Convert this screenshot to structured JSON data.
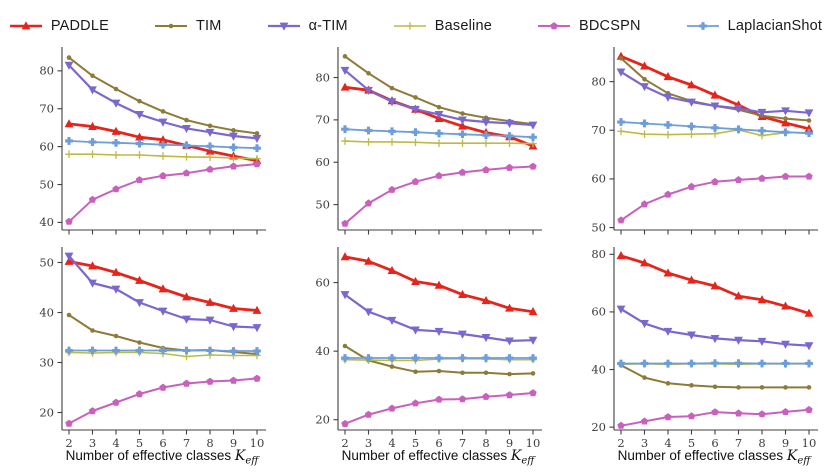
{
  "legend": {
    "items": [
      {
        "label": "PADDLE"
      },
      {
        "label": "TIM"
      },
      {
        "label": "α-TIM"
      },
      {
        "label": "Baseline"
      },
      {
        "label": "BDCSPN"
      },
      {
        "label": "LaplacianShot"
      }
    ]
  },
  "series_styles": {
    "PADDLE": {
      "color": "#e5251c",
      "marker": "triangle-up",
      "line_width": 2.8
    },
    "TIM": {
      "color": "#8d7b39",
      "marker": "dot",
      "line_width": 2.0
    },
    "alpha-TIM": {
      "color": "#7a67cf",
      "marker": "triangle-down",
      "line_width": 2.2
    },
    "Baseline": {
      "color": "#bdba45",
      "marker": "plus-thin",
      "line_width": 1.6
    },
    "BDCSPN": {
      "color": "#c960bd",
      "marker": "pentagon",
      "line_width": 2.0
    },
    "LaplacianShot": {
      "color": "#6e9ed9",
      "marker": "plus-bold",
      "line_width": 1.8
    }
  },
  "xlabel": {
    "text": "Number of effective classes ",
    "math": "K",
    "sub": "eff"
  },
  "x_ticks": [
    2,
    3,
    4,
    5,
    6,
    7,
    8,
    9,
    10
  ],
  "chart_data": [
    {
      "type": "line",
      "position": "top-left",
      "x": [
        2,
        3,
        4,
        5,
        6,
        7,
        8,
        9,
        10
      ],
      "yticks": [
        40,
        50,
        60,
        70,
        80
      ],
      "ylim": [
        38,
        85.5
      ],
      "show_x_tick_labels": false,
      "series": [
        {
          "name": "PADDLE",
          "values": [
            66,
            65.3,
            64,
            62.5,
            61.8,
            60.3,
            58.8,
            57.5,
            56.3
          ]
        },
        {
          "name": "TIM",
          "values": [
            83.5,
            78.7,
            75.2,
            72,
            69.3,
            67,
            65.5,
            64.3,
            63.5
          ]
        },
        {
          "name": "alpha-TIM",
          "values": [
            81.5,
            75,
            71.5,
            68.5,
            66.5,
            64.8,
            63.8,
            62.8,
            62.2
          ]
        },
        {
          "name": "Baseline",
          "values": [
            58,
            58,
            57.8,
            57.8,
            57.5,
            57.3,
            57.2,
            57,
            56.8
          ]
        },
        {
          "name": "BDCSPN",
          "values": [
            40.2,
            46,
            48.8,
            51.2,
            52.3,
            53,
            54,
            54.8,
            55.4
          ]
        },
        {
          "name": "LaplacianShot",
          "values": [
            61.5,
            61.2,
            61,
            60.8,
            60.5,
            60.3,
            60.1,
            59.8,
            59.6
          ]
        }
      ]
    },
    {
      "type": "line",
      "position": "top-middle",
      "x": [
        2,
        3,
        4,
        5,
        6,
        7,
        8,
        9,
        10
      ],
      "yticks": [
        50,
        60,
        70,
        80
      ],
      "ylim": [
        44,
        86.5
      ],
      "show_x_tick_labels": false,
      "series": [
        {
          "name": "PADDLE",
          "values": [
            77.7,
            77,
            74.5,
            72.5,
            70.3,
            68.5,
            67,
            66,
            63.8
          ]
        },
        {
          "name": "TIM",
          "values": [
            85,
            81,
            77.5,
            75.3,
            73,
            71.5,
            70.5,
            69.7,
            69
          ]
        },
        {
          "name": "alpha-TIM",
          "values": [
            81.7,
            77,
            74.3,
            72.5,
            71.3,
            70,
            69.5,
            69.2,
            68.8
          ]
        },
        {
          "name": "Baseline",
          "values": [
            65,
            64.8,
            64.8,
            64.7,
            64.5,
            64.5,
            64.5,
            64.5,
            64.4
          ]
        },
        {
          "name": "BDCSPN",
          "values": [
            45.5,
            50.3,
            53.5,
            55.4,
            56.8,
            57.6,
            58.2,
            58.7,
            59
          ]
        },
        {
          "name": "LaplacianShot",
          "values": [
            67.8,
            67.5,
            67.3,
            67.1,
            66.8,
            66.6,
            66.4,
            66.2,
            65.9
          ]
        }
      ]
    },
    {
      "type": "line",
      "position": "top-right",
      "x": [
        2,
        3,
        4,
        5,
        6,
        7,
        8,
        9,
        10
      ],
      "yticks": [
        50,
        60,
        70,
        80
      ],
      "ylim": [
        49.5,
        86.5
      ],
      "show_x_tick_labels": false,
      "series": [
        {
          "name": "PADDLE",
          "values": [
            85.2,
            83.2,
            81,
            79.3,
            77.2,
            75.2,
            72.8,
            71.5,
            70.3
          ]
        },
        {
          "name": "TIM",
          "values": [
            84.8,
            80.5,
            77.6,
            76,
            75,
            74.2,
            73,
            72.4,
            72
          ]
        },
        {
          "name": "alpha-TIM",
          "values": [
            82,
            79,
            76.8,
            75.8,
            75,
            74.5,
            73.7,
            74,
            73.6
          ]
        },
        {
          "name": "Baseline",
          "values": [
            69.8,
            69.2,
            69.1,
            69.2,
            69.3,
            70.1,
            68.9,
            69.5,
            69.5
          ]
        },
        {
          "name": "BDCSPN",
          "values": [
            51.5,
            54.8,
            56.8,
            58.4,
            59.4,
            59.8,
            60.1,
            60.5,
            60.5
          ]
        },
        {
          "name": "LaplacianShot",
          "values": [
            71.7,
            71.4,
            71.1,
            70.8,
            70.5,
            70.2,
            69.9,
            69.6,
            69.4
          ]
        }
      ]
    },
    {
      "type": "line",
      "position": "bottom-left",
      "x": [
        2,
        3,
        4,
        5,
        6,
        7,
        8,
        9,
        10
      ],
      "yticks": [
        20,
        30,
        40,
        50
      ],
      "ylim": [
        16.5,
        52.5
      ],
      "show_x_tick_labels": true,
      "series": [
        {
          "name": "PADDLE",
          "values": [
            50.2,
            49.3,
            48,
            46.4,
            44.7,
            43.1,
            42,
            40.8,
            40.4
          ]
        },
        {
          "name": "TIM",
          "values": [
            39.5,
            36.4,
            35.3,
            34,
            32.9,
            32.4,
            32.5,
            32.1,
            31.7
          ]
        },
        {
          "name": "alpha-TIM",
          "values": [
            51.3,
            45.9,
            44.7,
            42,
            40.3,
            38.7,
            38.5,
            37.2,
            37
          ]
        },
        {
          "name": "Baseline",
          "values": [
            32,
            31.9,
            32,
            32,
            31.8,
            31.2,
            31.5,
            31.4,
            31.4
          ]
        },
        {
          "name": "BDCSPN",
          "values": [
            17.8,
            20.3,
            22,
            23.7,
            25,
            25.8,
            26.2,
            26.4,
            26.8
          ]
        },
        {
          "name": "LaplacianShot",
          "values": [
            32.4,
            32.4,
            32.4,
            32.4,
            32.4,
            32.4,
            32.4,
            32.3,
            32.3
          ]
        }
      ]
    },
    {
      "type": "line",
      "position": "bottom-middle",
      "x": [
        2,
        3,
        4,
        5,
        6,
        7,
        8,
        9,
        10
      ],
      "yticks": [
        20,
        40,
        60
      ],
      "ylim": [
        17,
        69.5
      ],
      "show_x_tick_labels": true,
      "series": [
        {
          "name": "PADDLE",
          "values": [
            67.5,
            66.2,
            63.5,
            60.3,
            59.2,
            56.5,
            54.7,
            52.5,
            51.5
          ]
        },
        {
          "name": "TIM",
          "values": [
            41.5,
            37.3,
            35.5,
            34,
            34.2,
            33.7,
            33.7,
            33.3,
            33.5
          ]
        },
        {
          "name": "alpha-TIM",
          "values": [
            56.5,
            51.5,
            49,
            46.2,
            45.8,
            45,
            44,
            43,
            43.2
          ]
        },
        {
          "name": "Baseline",
          "values": [
            37.5,
            37.4,
            37.3,
            37.3,
            37.7,
            37.8,
            37.7,
            37.5,
            37.5
          ]
        },
        {
          "name": "BDCSPN",
          "values": [
            18.8,
            21.5,
            23.3,
            24.8,
            25.9,
            26,
            26.7,
            27.2,
            27.8
          ]
        },
        {
          "name": "LaplacianShot",
          "values": [
            38,
            38,
            38,
            38,
            38,
            38,
            38,
            38,
            38
          ]
        }
      ]
    },
    {
      "type": "line",
      "position": "bottom-right",
      "x": [
        2,
        3,
        4,
        5,
        6,
        7,
        8,
        9,
        10
      ],
      "yticks": [
        20,
        40,
        60,
        80
      ],
      "ylim": [
        19,
        81.5
      ],
      "show_x_tick_labels": true,
      "series": [
        {
          "name": "PADDLE",
          "values": [
            79.5,
            77,
            73.5,
            71,
            69,
            65.5,
            64.2,
            62,
            59.5
          ]
        },
        {
          "name": "TIM",
          "values": [
            41.5,
            37.2,
            35.2,
            34.5,
            34,
            33.8,
            33.8,
            33.8,
            33.8
          ]
        },
        {
          "name": "alpha-TIM",
          "values": [
            61,
            56,
            53.3,
            52,
            50.8,
            50.2,
            49.8,
            48.8,
            48.3
          ]
        },
        {
          "name": "Baseline",
          "values": [
            41.8,
            42,
            41.8,
            42,
            42,
            41.8,
            42,
            41.9,
            42
          ]
        },
        {
          "name": "BDCSPN",
          "values": [
            20.5,
            22,
            23.5,
            23.8,
            25.2,
            24.8,
            24.5,
            25.3,
            26
          ]
        },
        {
          "name": "LaplacianShot",
          "values": [
            42.1,
            42.1,
            42.1,
            42.1,
            42.2,
            42.2,
            42.1,
            42.1,
            42.1
          ]
        }
      ]
    }
  ],
  "axis": {
    "color": "#3f3f3f",
    "tick_label_color": "#3d3d3d"
  }
}
